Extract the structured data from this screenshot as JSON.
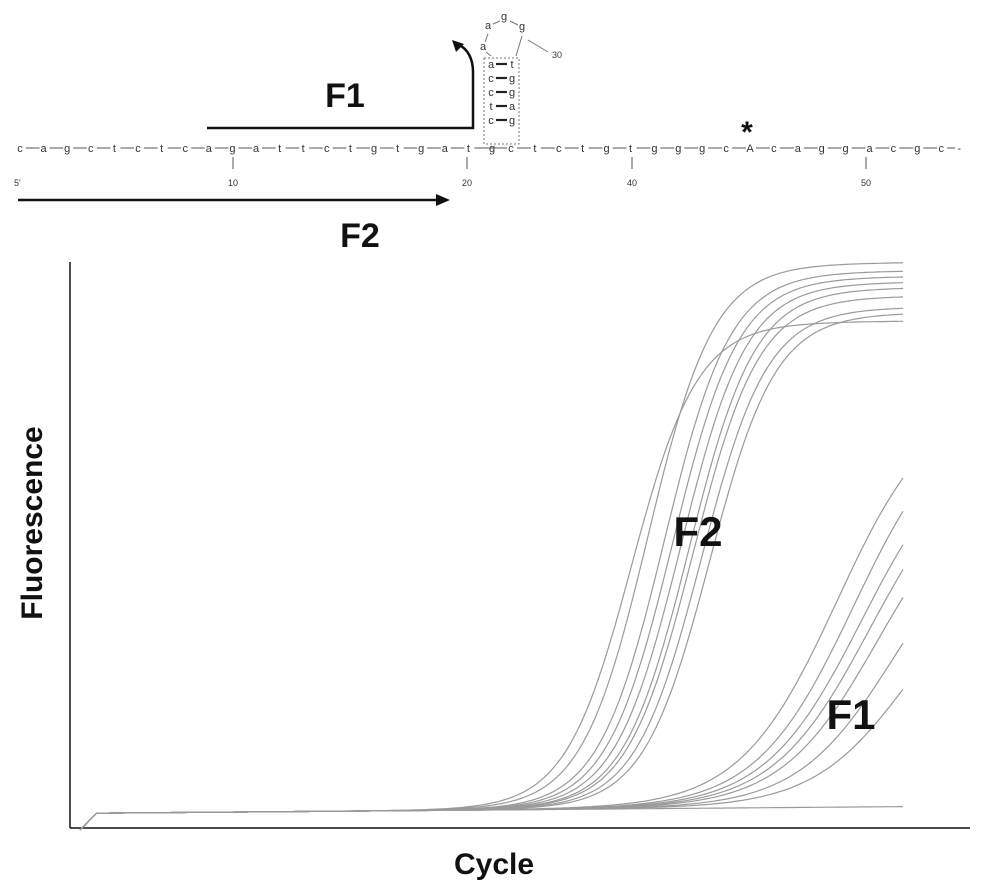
{
  "diagram": {
    "sequence": {
      "bases": [
        "c",
        "a",
        "g",
        "c",
        "t",
        "c",
        "t",
        "c",
        "a",
        "g",
        "a",
        "t",
        "t",
        "c",
        "t",
        "g",
        "t",
        "g",
        "a",
        "t",
        "g",
        "c",
        "t",
        "c",
        "t",
        "g",
        "t",
        "g",
        "g",
        "g",
        "c",
        "A",
        "c",
        "a",
        "g",
        "g",
        "a",
        "c",
        "g",
        "c"
      ],
      "suffix": "-",
      "five_prime_label": "5'",
      "position_labels": [
        "10",
        "20",
        "40",
        "50"
      ],
      "hairpin": {
        "stem_left": [
          "a",
          "c",
          "c",
          "t",
          "c"
        ],
        "stem_right": [
          "t",
          "g",
          "g",
          "a",
          "g"
        ],
        "loop": [
          "a",
          "a",
          "g",
          "g"
        ],
        "loop_label": "30"
      },
      "mutation_marker": "*"
    },
    "primers": {
      "f1_label": "F1",
      "f2_label": "F2"
    }
  },
  "chart": {
    "xlabel": "Cycle",
    "ylabel": "Fluorescence",
    "series_labels": {
      "f2": "F2",
      "f1": "F1"
    }
  },
  "chart_data": {
    "type": "line",
    "xlabel": "Cycle",
    "ylabel": "Fluorescence",
    "x_range": [
      0,
      100
    ],
    "y_range": [
      0,
      100
    ],
    "axis_ticks": false,
    "note_units": "axes have no printed ticks; values are relative (0-100)",
    "groups": [
      {
        "label": "F2",
        "curves": [
          {
            "midpoint": 69.0,
            "plateau": 97.5,
            "steepness": 0.25
          },
          {
            "midpoint": 71.0,
            "plateau": 96.0,
            "steepness": 0.25
          },
          {
            "midpoint": 72.0,
            "plateau": 95.0,
            "steepness": 0.25
          },
          {
            "midpoint": 73.0,
            "plateau": 94.0,
            "steepness": 0.25
          },
          {
            "midpoint": 74.0,
            "plateau": 93.0,
            "steepness": 0.25
          },
          {
            "midpoint": 74.5,
            "plateau": 91.5,
            "steepness": 0.25
          },
          {
            "midpoint": 75.5,
            "plateau": 89.5,
            "steepness": 0.25
          },
          {
            "midpoint": 76.5,
            "plateau": 88.5,
            "steepness": 0.25
          },
          {
            "midpoint": 67.0,
            "plateau": 87.0,
            "steepness": 0.25
          }
        ]
      },
      {
        "label": "F1",
        "curves": [
          {
            "midpoint": 92.0,
            "plateau": 74.0,
            "steepness": 0.17
          },
          {
            "midpoint": 94.0,
            "plateau": 72.0,
            "steepness": 0.17
          },
          {
            "midpoint": 95.0,
            "plateau": 67.0,
            "steepness": 0.17
          },
          {
            "midpoint": 96.0,
            "plateau": 64.0,
            "steepness": 0.17
          },
          {
            "midpoint": 97.0,
            "plateau": 60.0,
            "steepness": 0.17
          },
          {
            "midpoint": 99.0,
            "plateau": 54.0,
            "steepness": 0.17
          },
          {
            "midpoint": 101.0,
            "plateau": 46.0,
            "steepness": 0.17
          }
        ]
      },
      {
        "label": "",
        "curves": [
          {
            "midpoint": 200.0,
            "plateau": 0.0,
            "steepness": 0.2
          }
        ]
      }
    ]
  }
}
